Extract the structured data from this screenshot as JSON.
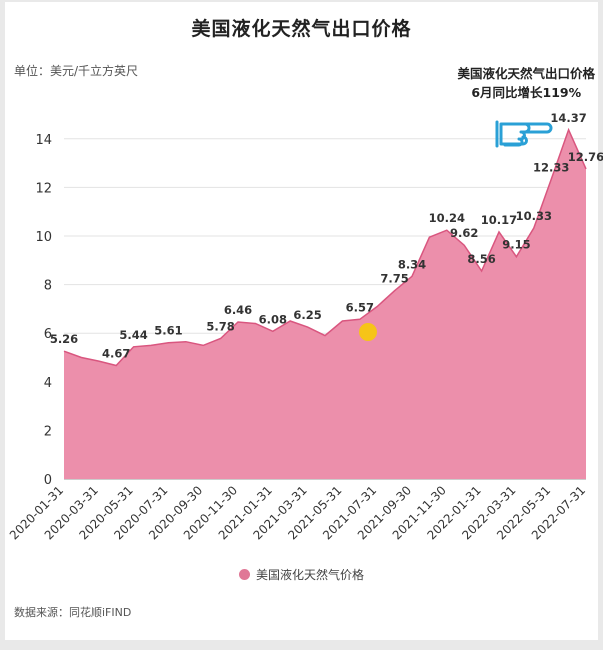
{
  "title": "美国液化天然气出口价格",
  "unit_label": "单位：美元/千立方英尺",
  "annotation": {
    "line1": "美国液化天然气出口价格",
    "line2": "6月同比增长119%"
  },
  "legend_label": "美国液化天然气价格",
  "source": "数据来源：同花顺iFIND",
  "colors": {
    "area": "#ec8fab",
    "line": "#d9567f",
    "legend_dot": "#e07796",
    "marker": "#f6c418",
    "hand": "#2aa0d6"
  },
  "icons": [
    "pointing-hand-icon",
    "highlight-dot"
  ],
  "chart_data": {
    "type": "area",
    "title": "美国液化天然气出口价格",
    "ylabel": "单位：美元/千立方英尺",
    "ylim": [
      0,
      16
    ],
    "yticks": [
      0,
      2,
      4,
      6,
      8,
      10,
      12,
      14
    ],
    "grid": true,
    "legend_position": "bottom",
    "x_tick_labels": [
      "2020-01-31",
      "2020-03-31",
      "2020-05-31",
      "2020-07-31",
      "2020-09-30",
      "2020-11-30",
      "2021-01-31",
      "2021-03-31",
      "2021-05-31",
      "2021-07-31",
      "2021-09-30",
      "2021-11-30",
      "2022-01-31",
      "2022-03-31",
      "2022-05-31",
      "2022-07-31"
    ],
    "series": [
      {
        "name": "美国液化天然气价格",
        "x": [
          "2020-01",
          "2020-02",
          "2020-03",
          "2020-04",
          "2020-05",
          "2020-06",
          "2020-07",
          "2020-08",
          "2020-09",
          "2020-10",
          "2020-11",
          "2020-12",
          "2021-01",
          "2021-02",
          "2021-03",
          "2021-04",
          "2021-05",
          "2021-06",
          "2021-07",
          "2021-08",
          "2021-09",
          "2021-10",
          "2021-11",
          "2021-12",
          "2022-01",
          "2022-02",
          "2022-03",
          "2022-04",
          "2022-05",
          "2022-06",
          "2022-07"
        ],
        "values": [
          5.26,
          5.0,
          4.85,
          4.67,
          5.44,
          5.5,
          5.61,
          5.65,
          5.5,
          5.78,
          6.46,
          6.4,
          6.08,
          6.5,
          6.25,
          5.9,
          6.5,
          6.57,
          7.1,
          7.75,
          8.34,
          9.95,
          10.24,
          9.62,
          8.56,
          10.17,
          9.15,
          10.33,
          12.33,
          14.37,
          12.76
        ]
      }
    ],
    "data_labels": [
      {
        "index": 0,
        "text": "5.26"
      },
      {
        "index": 3,
        "text": "4.67"
      },
      {
        "index": 4,
        "text": "5.44"
      },
      {
        "index": 6,
        "text": "5.61"
      },
      {
        "index": 9,
        "text": "5.78"
      },
      {
        "index": 10,
        "text": "6.46"
      },
      {
        "index": 12,
        "text": "6.08"
      },
      {
        "index": 14,
        "text": "6.25"
      },
      {
        "index": 17,
        "text": "6.57"
      },
      {
        "index": 19,
        "text": "7.75"
      },
      {
        "index": 20,
        "text": "8.34"
      },
      {
        "index": 22,
        "text": "10.24"
      },
      {
        "index": 23,
        "text": "9.62"
      },
      {
        "index": 24,
        "text": "8.56"
      },
      {
        "index": 25,
        "text": "10.17"
      },
      {
        "index": 26,
        "text": "9.15"
      },
      {
        "index": 27,
        "text": "10.33"
      },
      {
        "index": 28,
        "text": "12.33"
      },
      {
        "index": 29,
        "text": "14.37"
      },
      {
        "index": 30,
        "text": "12.76"
      }
    ]
  }
}
